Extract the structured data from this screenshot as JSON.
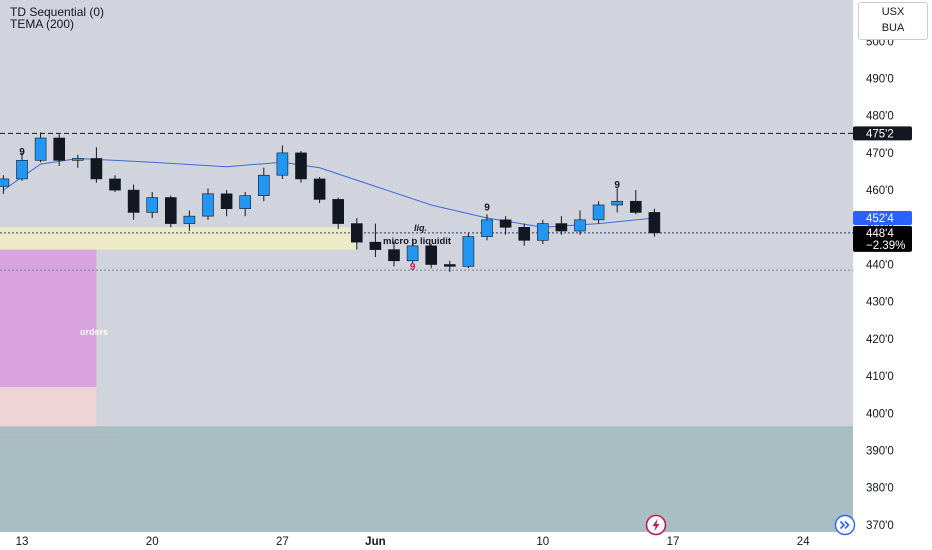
{
  "indicators": [
    "TD Sequential (0)",
    "TEMA (200)"
  ],
  "currency": {
    "line1": "USX",
    "line2": "BUA"
  },
  "price_badges": {
    "resistance": "475'2",
    "tema": "452'4",
    "last_price": "448'4",
    "change": "−2.39%"
  },
  "zone_labels": {
    "orders": "orders",
    "liq": "liq.",
    "micro": "micro p liquidit"
  },
  "td_counts": [
    {
      "label": "9",
      "date": "May 13",
      "price": 469.5,
      "color": "#131722"
    },
    {
      "label": "9",
      "date": "Jun 3",
      "price": 438.5,
      "color": "#c2185b"
    },
    {
      "label": "9",
      "date": "Jun 7",
      "price": 454.5,
      "color": "#131722"
    },
    {
      "label": "9",
      "date": "Jun 14",
      "price": 460.5,
      "color": "#131722"
    }
  ],
  "icons": {
    "flash": "flash-icon",
    "goto_realtime": "double-chevron-right-icon"
  },
  "colors": {
    "background": "#d1d4dc",
    "bull_candle": "#2196f3",
    "bear_candle": "#131722",
    "tema_line": "#3d6bd6",
    "orders_zone": "#d9a3df",
    "demand_zone_light": "#eed4d4",
    "micro_zone": "#eeeac6",
    "lower_zone": "#a9bec3",
    "tema_badge": "#2962ff",
    "last_badge": "#000000"
  },
  "chart_data": {
    "type": "candlestick",
    "yunit": "price (cents, fractional eighths)",
    "ylim": [
      368,
      504
    ],
    "y_ticks": [
      "500'0",
      "490'0",
      "480'0",
      "470'0",
      "460'0",
      "450'0",
      "440'0",
      "430'0",
      "420'0",
      "410'0",
      "400'0",
      "390'0",
      "380'0",
      "370'0"
    ],
    "x_ticks": [
      "13",
      "20",
      "27",
      "Jun",
      "10",
      "17",
      "24"
    ],
    "horizontal_lines": [
      {
        "name": "resistance",
        "price": 475.25,
        "style": "dashed"
      },
      {
        "name": "last_price",
        "price": 448.5,
        "style": "dotted"
      },
      {
        "name": "support",
        "price": 438.5,
        "style": "dotted"
      }
    ],
    "zones": [
      {
        "name": "micro_zone",
        "from": "May 10",
        "to": "May 31",
        "low": 444,
        "high": 450
      },
      {
        "name": "orders_zone",
        "from": "May 10",
        "to": "May 17",
        "low": 407,
        "high": 444
      },
      {
        "name": "demand_zone_light",
        "from": "May 10",
        "to": "May 17",
        "low": 395,
        "high": 407
      },
      {
        "name": "lower_zone",
        "from": "May 10",
        "to": "Jun 28",
        "low": 368,
        "high": 396.5
      }
    ],
    "candles": [
      {
        "date": "May 12",
        "open": 461.0,
        "high": 464.0,
        "low": 459.0,
        "close": 463.0
      },
      {
        "date": "May 13",
        "open": 463.0,
        "high": 470.0,
        "low": 462.5,
        "close": 468.0
      },
      {
        "date": "May 14",
        "open": 468.0,
        "high": 475.5,
        "low": 467.5,
        "close": 474.0
      },
      {
        "date": "May 15",
        "open": 474.0,
        "high": 475.0,
        "low": 466.5,
        "close": 468.0
      },
      {
        "date": "May 16",
        "open": 468.0,
        "high": 469.5,
        "low": 466.0,
        "close": 468.5
      },
      {
        "date": "May 17",
        "open": 468.5,
        "high": 471.5,
        "low": 462.0,
        "close": 463.0
      },
      {
        "date": "May 18",
        "open": 463.0,
        "high": 464.0,
        "low": 459.5,
        "close": 460.0
      },
      {
        "date": "May 19",
        "open": 460.0,
        "high": 461.5,
        "low": 452.0,
        "close": 454.0
      },
      {
        "date": "May 20",
        "open": 454.0,
        "high": 459.5,
        "low": 452.5,
        "close": 458.0
      },
      {
        "date": "May 21",
        "open": 458.0,
        "high": 458.5,
        "low": 450.0,
        "close": 451.0
      },
      {
        "date": "May 22",
        "open": 451.0,
        "high": 454.5,
        "low": 449.0,
        "close": 453.0
      },
      {
        "date": "May 23",
        "open": 453.0,
        "high": 460.5,
        "low": 452.0,
        "close": 459.0
      },
      {
        "date": "May 24",
        "open": 459.0,
        "high": 460.0,
        "low": 453.0,
        "close": 455.0
      },
      {
        "date": "May 25",
        "open": 455.0,
        "high": 459.5,
        "low": 453.0,
        "close": 458.5
      },
      {
        "date": "May 26",
        "open": 458.5,
        "high": 466.0,
        "low": 457.0,
        "close": 464.0
      },
      {
        "date": "May 27",
        "open": 464.0,
        "high": 472.0,
        "low": 463.0,
        "close": 470.0
      },
      {
        "date": "May 28",
        "open": 470.0,
        "high": 470.5,
        "low": 462.0,
        "close": 463.0
      },
      {
        "date": "May 29",
        "open": 463.0,
        "high": 463.5,
        "low": 456.5,
        "close": 457.5
      },
      {
        "date": "May 30",
        "open": 457.5,
        "high": 458.0,
        "low": 449.5,
        "close": 451.0
      },
      {
        "date": "May 31",
        "open": 451.0,
        "high": 452.5,
        "low": 444.0,
        "close": 446.0
      },
      {
        "date": "Jun 1",
        "open": 446.0,
        "high": 451.0,
        "low": 442.0,
        "close": 444.0
      },
      {
        "date": "Jun 2",
        "open": 444.0,
        "high": 446.0,
        "low": 439.5,
        "close": 441.0
      },
      {
        "date": "Jun 3",
        "open": 441.0,
        "high": 447.0,
        "low": 440.5,
        "close": 445.0
      },
      {
        "date": "Jun 4",
        "open": 445.0,
        "high": 445.5,
        "low": 439.0,
        "close": 440.0
      },
      {
        "date": "Jun 5",
        "open": 440.0,
        "high": 441.0,
        "low": 438.0,
        "close": 439.5
      },
      {
        "date": "Jun 6",
        "open": 439.5,
        "high": 448.5,
        "low": 439.0,
        "close": 447.5
      },
      {
        "date": "Jun 7",
        "open": 447.5,
        "high": 453.5,
        "low": 446.5,
        "close": 452.0
      },
      {
        "date": "Jun 8",
        "open": 452.0,
        "high": 453.0,
        "low": 448.0,
        "close": 450.0
      },
      {
        "date": "Jun 9",
        "open": 450.0,
        "high": 451.0,
        "low": 445.0,
        "close": 446.5
      },
      {
        "date": "Jun 10",
        "open": 446.5,
        "high": 452.0,
        "low": 445.5,
        "close": 451.0
      },
      {
        "date": "Jun 11",
        "open": 451.0,
        "high": 453.0,
        "low": 448.0,
        "close": 449.0
      },
      {
        "date": "Jun 12",
        "open": 449.0,
        "high": 454.5,
        "low": 448.0,
        "close": 452.0
      },
      {
        "date": "Jun 13",
        "open": 452.0,
        "high": 457.0,
        "low": 451.0,
        "close": 456.0
      },
      {
        "date": "Jun 14",
        "open": 456.0,
        "high": 460.5,
        "low": 454.0,
        "close": 457.0
      },
      {
        "date": "Jun 15",
        "open": 457.0,
        "high": 460.0,
        "low": 453.5,
        "close": 454.0
      },
      {
        "date": "Jun 16",
        "open": 454.0,
        "high": 455.0,
        "low": 447.5,
        "close": 448.5
      }
    ],
    "tema": [
      {
        "date": "May 12",
        "value": 460.0
      },
      {
        "date": "May 14",
        "value": 467.0
      },
      {
        "date": "May 16",
        "value": 468.5
      },
      {
        "date": "May 20",
        "value": 467.5
      },
      {
        "date": "May 24",
        "value": 466.3
      },
      {
        "date": "May 27",
        "value": 467.5
      },
      {
        "date": "May 29",
        "value": 466.0
      },
      {
        "date": "Jun 1",
        "value": 461.0
      },
      {
        "date": "Jun 4",
        "value": 456.0
      },
      {
        "date": "Jun 7",
        "value": 452.5
      },
      {
        "date": "Jun 10",
        "value": 450.0
      },
      {
        "date": "Jun 13",
        "value": 451.0
      },
      {
        "date": "Jun 16",
        "value": 452.5
      }
    ]
  }
}
